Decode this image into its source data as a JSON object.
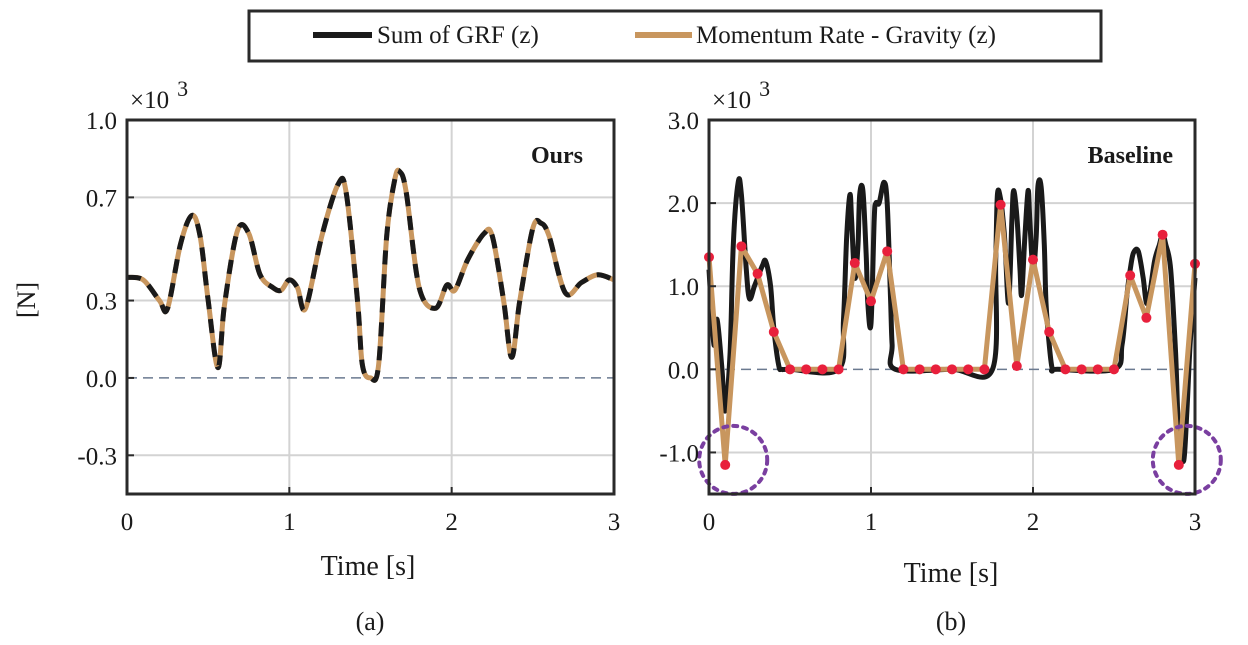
{
  "legend": {
    "entries": [
      {
        "label": "Sum of GRF (z)",
        "color": "#1a1a1a"
      },
      {
        "label": "Momentum Rate - Gravity (z)",
        "color": "#c8965e"
      }
    ]
  },
  "colors": {
    "axis": "#2a2a2a",
    "grid": "#d3d3d3",
    "zero_line": "#6b7a90",
    "grf": "#1a1a1a",
    "momentum": "#c8965e",
    "knot": "#e8203c",
    "circle": "#7a3fa0"
  },
  "chart_data": [
    {
      "type": "line",
      "title": "Ours",
      "panel_label": "(a)",
      "xlabel": "Time [s]",
      "ylabel": "[N]",
      "exponent_text": "×10",
      "exponent_power": "3",
      "xlim": [
        0,
        3
      ],
      "ylim": [
        -0.45,
        1.0
      ],
      "xticks": [
        0,
        1,
        2,
        3
      ],
      "xtick_labels": [
        "0",
        "1",
        "2",
        "3"
      ],
      "yticks": [
        -0.3,
        0.0,
        0.3,
        0.7,
        1.0
      ],
      "ytick_labels": [
        "-0.3",
        "0.0",
        "0.3",
        "0.7",
        "1.0"
      ],
      "grid": true,
      "zero_line": true,
      "series": [
        {
          "name": "Sum of GRF (z)",
          "style": "dashed-overlay",
          "x": [
            0,
            0.1,
            0.2,
            0.25,
            0.33,
            0.4,
            0.45,
            0.5,
            0.56,
            0.6,
            0.68,
            0.75,
            0.82,
            0.9,
            0.95,
            1.0,
            1.05,
            1.1,
            1.2,
            1.3,
            1.35,
            1.42,
            1.45,
            1.5,
            1.55,
            1.6,
            1.65,
            1.68,
            1.72,
            1.8,
            1.9,
            1.97,
            2.02,
            2.1,
            2.2,
            2.25,
            2.32,
            2.37,
            2.42,
            2.5,
            2.55,
            2.6,
            2.7,
            2.8,
            2.9,
            3.0
          ],
          "y": [
            0.39,
            0.38,
            0.3,
            0.27,
            0.52,
            0.63,
            0.55,
            0.3,
            0.04,
            0.28,
            0.57,
            0.56,
            0.4,
            0.35,
            0.34,
            0.38,
            0.35,
            0.27,
            0.55,
            0.75,
            0.72,
            0.3,
            0.05,
            0.0,
            0.05,
            0.55,
            0.77,
            0.8,
            0.72,
            0.35,
            0.27,
            0.36,
            0.34,
            0.46,
            0.56,
            0.55,
            0.3,
            0.08,
            0.3,
            0.58,
            0.6,
            0.55,
            0.33,
            0.37,
            0.4,
            0.38
          ]
        }
      ]
    },
    {
      "type": "line",
      "title": "Baseline",
      "panel_label": "(b)",
      "xlabel": "Time [s]",
      "exponent_text": "×10",
      "exponent_power": "3",
      "xlim": [
        0,
        3
      ],
      "ylim": [
        -1.5,
        3.0
      ],
      "xticks": [
        0,
        1,
        2,
        3
      ],
      "xtick_labels": [
        "0",
        "1",
        "2",
        "3"
      ],
      "yticks": [
        -1.0,
        0.0,
        1.0,
        2.0,
        3.0
      ],
      "ytick_labels": [
        "-1.0",
        "0.0",
        "1.0",
        "2.0",
        "3.0"
      ],
      "grid": true,
      "zero_line": true,
      "series": [
        {
          "name": "Sum of GRF (z)",
          "x": [
            0,
            0.03,
            0.05,
            0.08,
            0.1,
            0.13,
            0.15,
            0.18,
            0.2,
            0.23,
            0.25,
            0.28,
            0.3,
            0.33,
            0.35,
            0.38,
            0.4,
            0.43,
            0.45,
            0.5,
            0.8,
            0.83,
            0.85,
            0.87,
            0.88,
            0.9,
            0.92,
            0.93,
            0.95,
            0.97,
            0.98,
            1.0,
            1.02,
            1.03,
            1.05,
            1.08,
            1.1,
            1.12,
            1.13,
            1.15,
            1.5,
            1.75,
            1.77,
            1.78,
            1.8,
            1.82,
            1.83,
            1.85,
            1.87,
            1.88,
            1.9,
            1.92,
            1.93,
            1.95,
            1.97,
            1.98,
            2.0,
            2.02,
            2.03,
            2.05,
            2.07,
            2.08,
            2.1,
            2.12,
            2.15,
            2.5,
            2.55,
            2.58,
            2.6,
            2.62,
            2.65,
            2.68,
            2.7,
            2.72,
            2.75,
            2.78,
            2.8,
            2.82,
            2.85,
            2.88,
            2.9,
            2.93,
            2.95,
            2.97,
            3.0
          ],
          "y": [
            1.2,
            0.3,
            0.6,
            0.0,
            -0.5,
            0.2,
            1.5,
            2.25,
            2.1,
            1.2,
            0.85,
            1.0,
            1.1,
            1.25,
            1.3,
            1.0,
            0.5,
            0.05,
            0.0,
            0.0,
            0.0,
            0.6,
            1.6,
            2.1,
            1.8,
            1.1,
            1.5,
            2.1,
            2.15,
            1.4,
            0.8,
            0.55,
            1.8,
            2.0,
            2.0,
            2.25,
            2.0,
            0.9,
            0.3,
            0.0,
            0.0,
            0.0,
            1.3,
            2.1,
            2.05,
            1.7,
            1.4,
            0.8,
            1.8,
            2.15,
            1.85,
            1.2,
            0.9,
            1.6,
            2.15,
            1.8,
            1.2,
            1.6,
            2.2,
            2.2,
            1.5,
            0.8,
            0.3,
            0.0,
            0.0,
            0.0,
            0.3,
            0.9,
            1.2,
            1.4,
            1.42,
            1.1,
            0.8,
            0.9,
            1.3,
            1.5,
            1.62,
            1.5,
            1.2,
            0.2,
            -0.8,
            -1.1,
            -0.5,
            0.3,
            1.1
          ]
        },
        {
          "name": "Momentum Rate - Gravity (z)",
          "x": [
            0,
            0.1,
            0.2,
            0.3,
            0.4,
            0.5,
            0.6,
            0.7,
            0.8,
            0.9,
            1.0,
            1.1,
            1.2,
            1.3,
            1.4,
            1.5,
            1.6,
            1.7,
            1.8,
            1.9,
            2.0,
            2.1,
            2.2,
            2.3,
            2.4,
            2.5,
            2.6,
            2.7,
            2.8,
            2.9,
            3.0
          ],
          "y": [
            1.35,
            -1.15,
            1.48,
            1.15,
            0.45,
            0.0,
            0.0,
            0.0,
            0.0,
            1.28,
            0.82,
            1.42,
            0.0,
            0.0,
            0.0,
            0.0,
            0.0,
            0.0,
            1.98,
            0.04,
            1.32,
            0.45,
            0.0,
            0.0,
            0.0,
            0.0,
            1.13,
            0.62,
            1.62,
            -1.15,
            1.27
          ],
          "markers": true
        }
      ],
      "annotations": [
        {
          "type": "dashed-circle",
          "x": 0.1,
          "y": -1.15
        },
        {
          "type": "dashed-circle",
          "x": 2.9,
          "y": -1.15
        }
      ]
    }
  ]
}
